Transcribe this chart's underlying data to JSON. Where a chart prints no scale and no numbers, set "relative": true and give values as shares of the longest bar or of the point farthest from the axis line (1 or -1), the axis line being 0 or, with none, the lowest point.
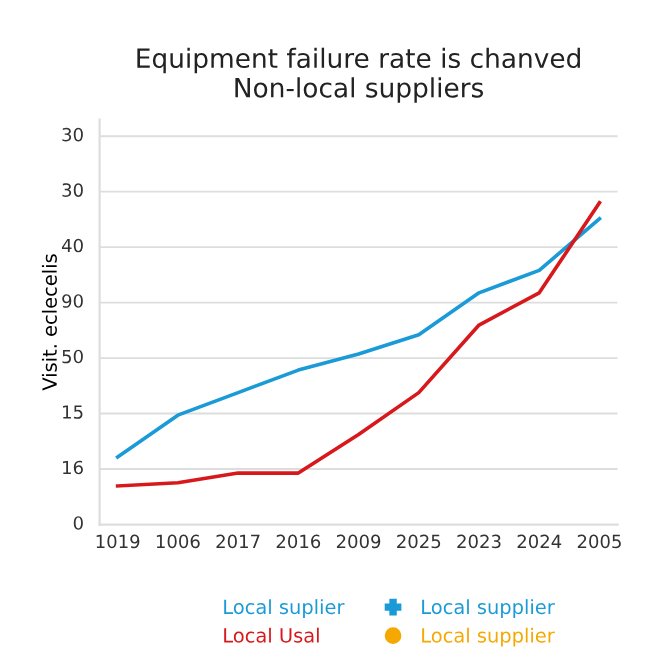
{
  "chart_data": {
    "type": "line",
    "title": "Equipment failure rate is chanved\nNon-local suppliers",
    "ylabel": "Visit. eclecelis",
    "relative": true,
    "categories": [
      "1019",
      "1006",
      "2017",
      "2016",
      "2009",
      "2025",
      "2023",
      "2024",
      "2005"
    ],
    "series": [
      {
        "name": "Local suplier",
        "color": "#1a9ad6",
        "values": [
          0.21,
          0.34,
          0.41,
          0.48,
          0.53,
          0.59,
          0.72,
          0.79,
          0.95
        ]
      },
      {
        "name": "Local Usal",
        "color": "#d7191c",
        "values": [
          0.12,
          0.13,
          0.16,
          0.16,
          0.28,
          0.41,
          0.62,
          0.72,
          1
        ]
      },
      {
        "name": "Local supplier",
        "color": "#1a9ad6",
        "values": [
          null,
          null,
          null,
          null,
          null,
          null,
          null,
          null,
          null
        ],
        "marker": "cross"
      },
      {
        "name": "Local supplier",
        "color": "#f5a800",
        "values": [
          null,
          null,
          null,
          null,
          null,
          null,
          null,
          null,
          null
        ],
        "marker": "circle"
      }
    ],
    "annotations": [
      "0",
      "16",
      "15",
      "50",
      "90",
      "40",
      "30",
      "30"
    ],
    "grid": "y",
    "legend": "bottom"
  }
}
